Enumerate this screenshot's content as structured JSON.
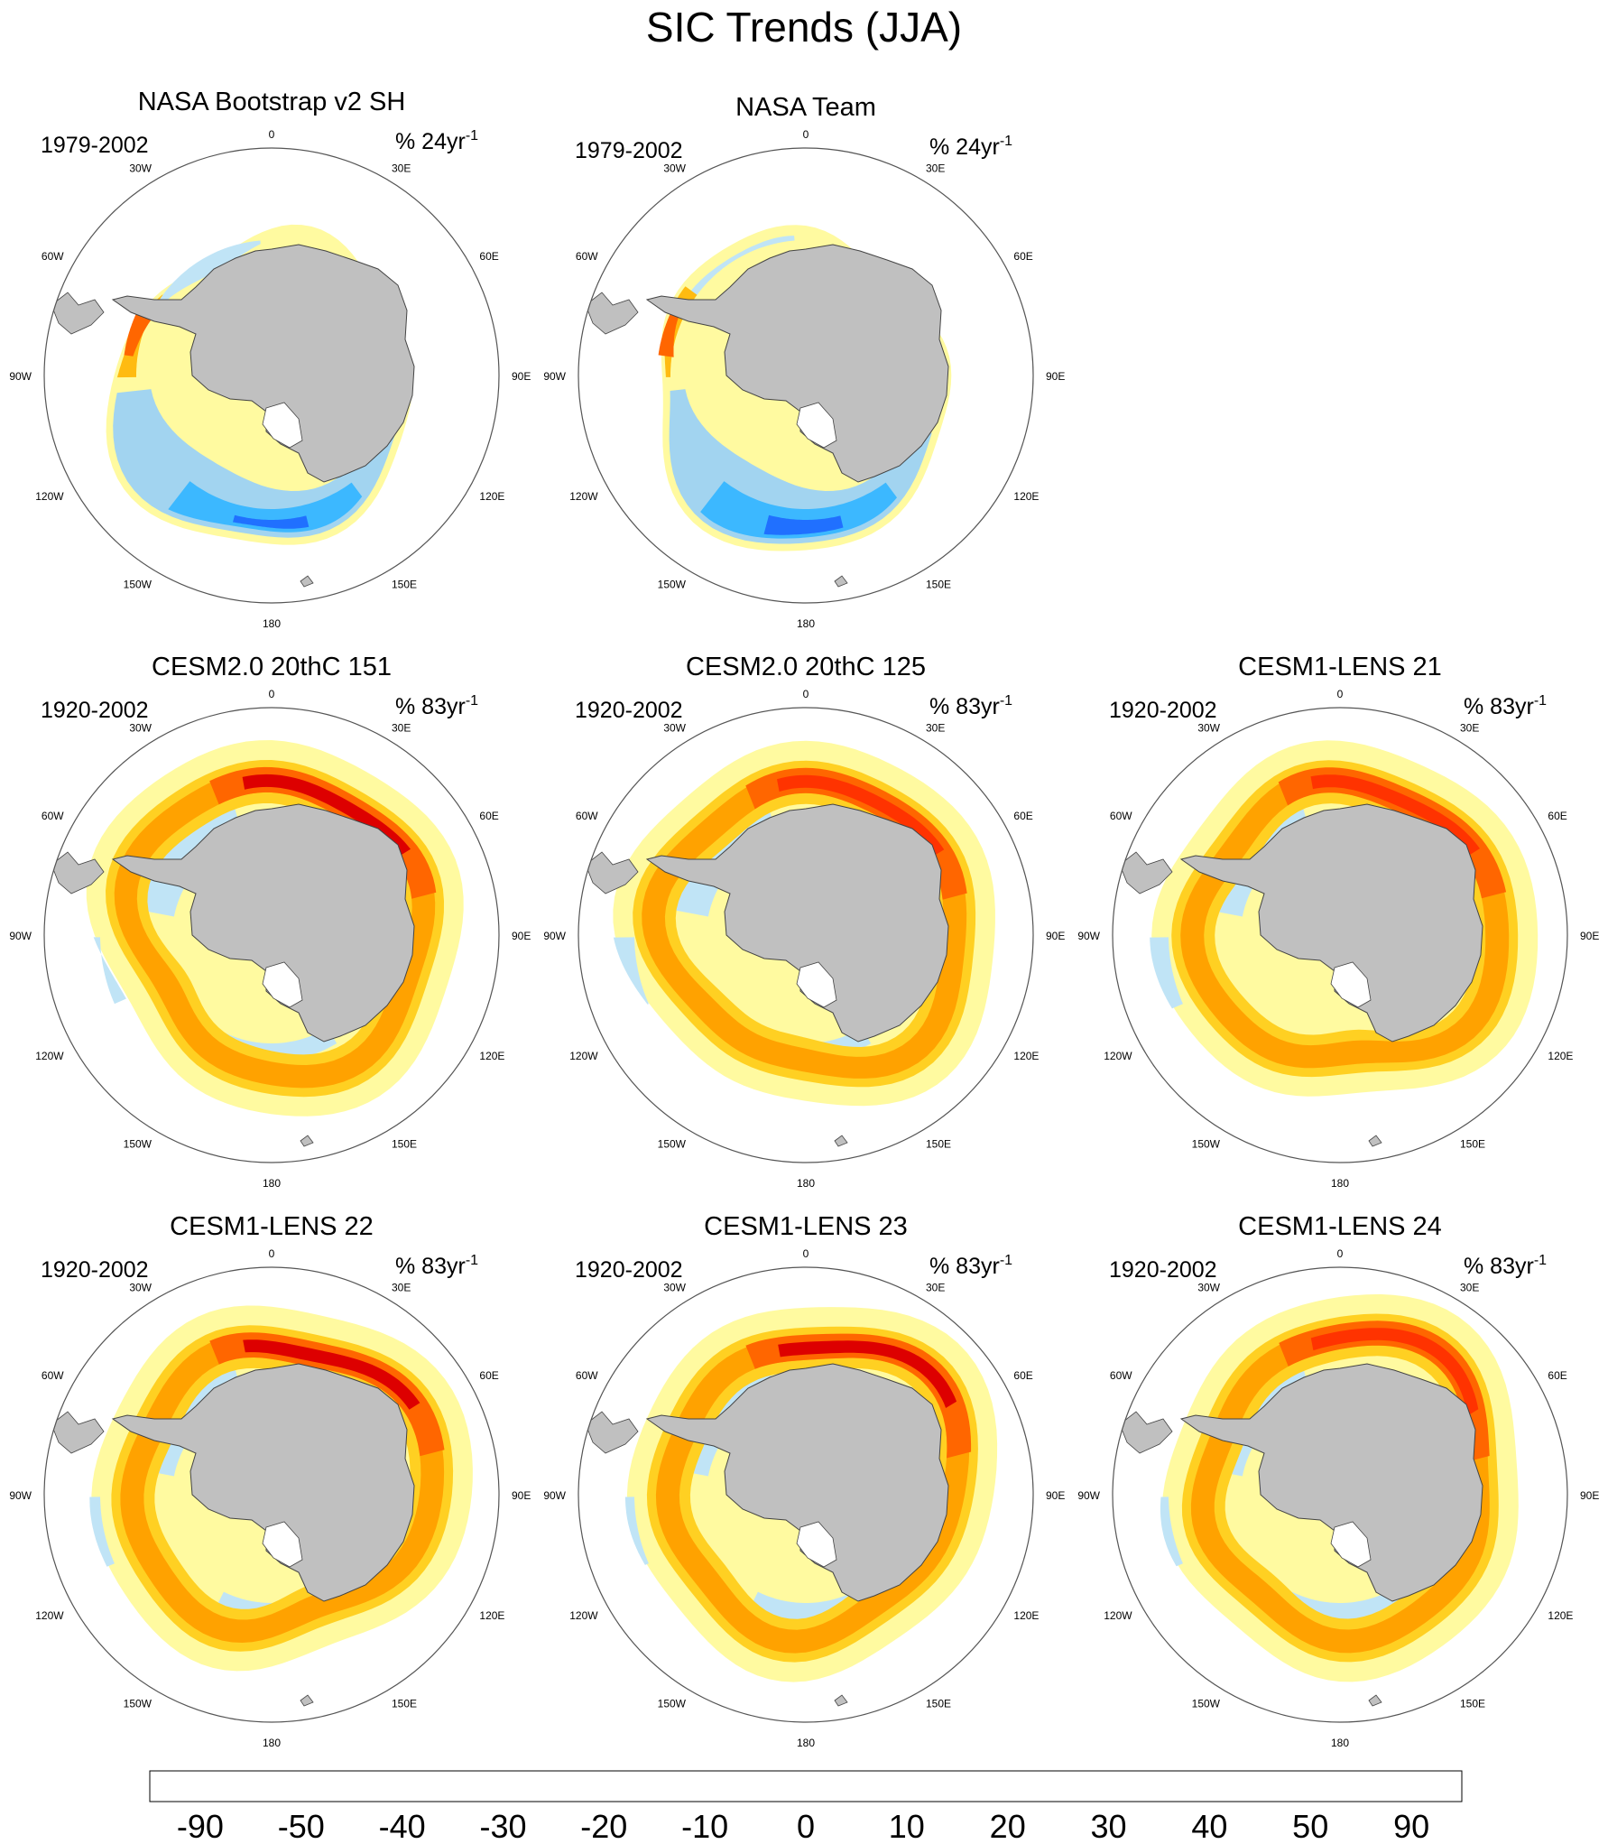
{
  "title": "SIC Trends (JJA)",
  "colors": {
    "land": "#c0c0c0",
    "ice_shelf": "#ffffff",
    "circle": "#555555"
  },
  "chart_data": {
    "type": "heatmap",
    "projection": "south polar stereographic",
    "longitude_labels": [
      "0",
      "30E",
      "60E",
      "90E",
      "120E",
      "150E",
      "180",
      "150W",
      "120W",
      "90W",
      "60W",
      "30W"
    ],
    "panels": [
      {
        "title": "NASA Bootstrap v2 SH",
        "period": "1979-2002",
        "units_prefix": "% 24yr",
        "units_exp": "-1",
        "pattern": "obs"
      },
      {
        "title": "NASA Team",
        "period": "1979-2002",
        "units_prefix": "% 24yr",
        "units_exp": "-1",
        "pattern": "obs"
      },
      {
        "title": "CESM2.0 20thC 151",
        "period": "1920-2002",
        "units_prefix": "% 83yr",
        "units_exp": "-1",
        "pattern": "model",
        "strength": 0.85
      },
      {
        "title": "CESM2.0 20thC 125",
        "period": "1920-2002",
        "units_prefix": "% 83yr",
        "units_exp": "-1",
        "pattern": "model",
        "strength": 0.8
      },
      {
        "title": "CESM1-LENS 21",
        "period": "1920-2002",
        "units_prefix": "% 83yr",
        "units_exp": "-1",
        "pattern": "model",
        "strength": 0.8
      },
      {
        "title": "CESM1-LENS 22",
        "period": "1920-2002",
        "units_prefix": "% 83yr",
        "units_exp": "-1",
        "pattern": "model",
        "strength": 0.85
      },
      {
        "title": "CESM1-LENS 23",
        "period": "1920-2002",
        "units_prefix": "% 83yr",
        "units_exp": "-1",
        "pattern": "model",
        "strength": 0.95
      },
      {
        "title": "CESM1-LENS 24",
        "period": "1920-2002",
        "units_prefix": "% 83yr",
        "units_exp": "-1",
        "pattern": "model",
        "strength": 0.7
      }
    ],
    "colorbar": {
      "labels": [
        "-90",
        "-50",
        "-40",
        "-30",
        "-20",
        "-10",
        "0",
        "10",
        "20",
        "30",
        "40",
        "50",
        "90"
      ],
      "colors": [
        "#ffaaaa",
        "#e05050",
        "#c80000",
        "#dd0000",
        "#ff0000",
        "#ff3300",
        "#ff6600",
        "#ff8800",
        "#ffa200",
        "#ffbb11",
        "#ffd022",
        "#ffe655",
        "#fffaa0",
        "#c0e4f6",
        "#a2d4f0",
        "#78c4f2",
        "#3cb8ff",
        "#1aaaf0",
        "#1a8cff",
        "#2070ff",
        "#3060ee",
        "#2844ff",
        "#0e22ff",
        "#0000ff",
        "#4b1ef0",
        "#8020f0"
      ]
    }
  }
}
